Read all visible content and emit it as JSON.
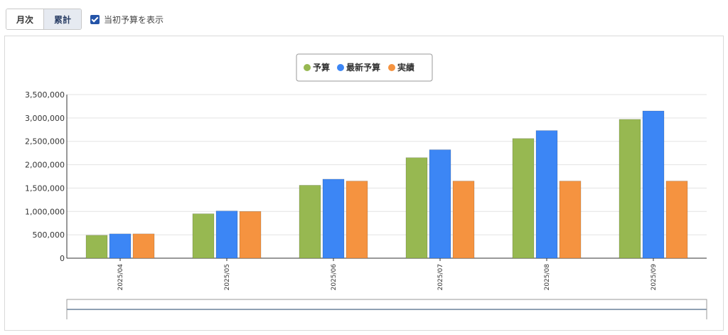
{
  "toolbar": {
    "tabs": [
      {
        "label": "月次",
        "active": false
      },
      {
        "label": "累計",
        "active": true
      }
    ],
    "checkbox": {
      "label": "当初予算を表示",
      "checked": true
    }
  },
  "chart_data": {
    "type": "bar",
    "categories": [
      "2025/04",
      "2025/05",
      "2025/06",
      "2025/07",
      "2025/08",
      "2025/09"
    ],
    "series": [
      {
        "name": "予算",
        "color": "#97b851",
        "values": [
          490000,
          950000,
          1560000,
          2150000,
          2560000,
          2970000
        ]
      },
      {
        "name": "最新予算",
        "color": "#3c86f5",
        "values": [
          520000,
          1010000,
          1690000,
          2320000,
          2730000,
          3150000
        ]
      },
      {
        "name": "実績",
        "color": "#f59340",
        "values": [
          520000,
          1000000,
          1650000,
          1650000,
          1650000,
          1650000
        ]
      }
    ],
    "ylim": [
      0,
      3500000
    ],
    "yticks": [
      0,
      500000,
      1000000,
      1500000,
      2000000,
      2500000,
      3000000,
      3500000
    ],
    "ytick_labels": [
      "0",
      "500,000",
      "1,000,000",
      "1,500,000",
      "2,000,000",
      "2,500,000",
      "3,000,000",
      "3,500,000"
    ],
    "grid": true,
    "legend": "top-center"
  }
}
